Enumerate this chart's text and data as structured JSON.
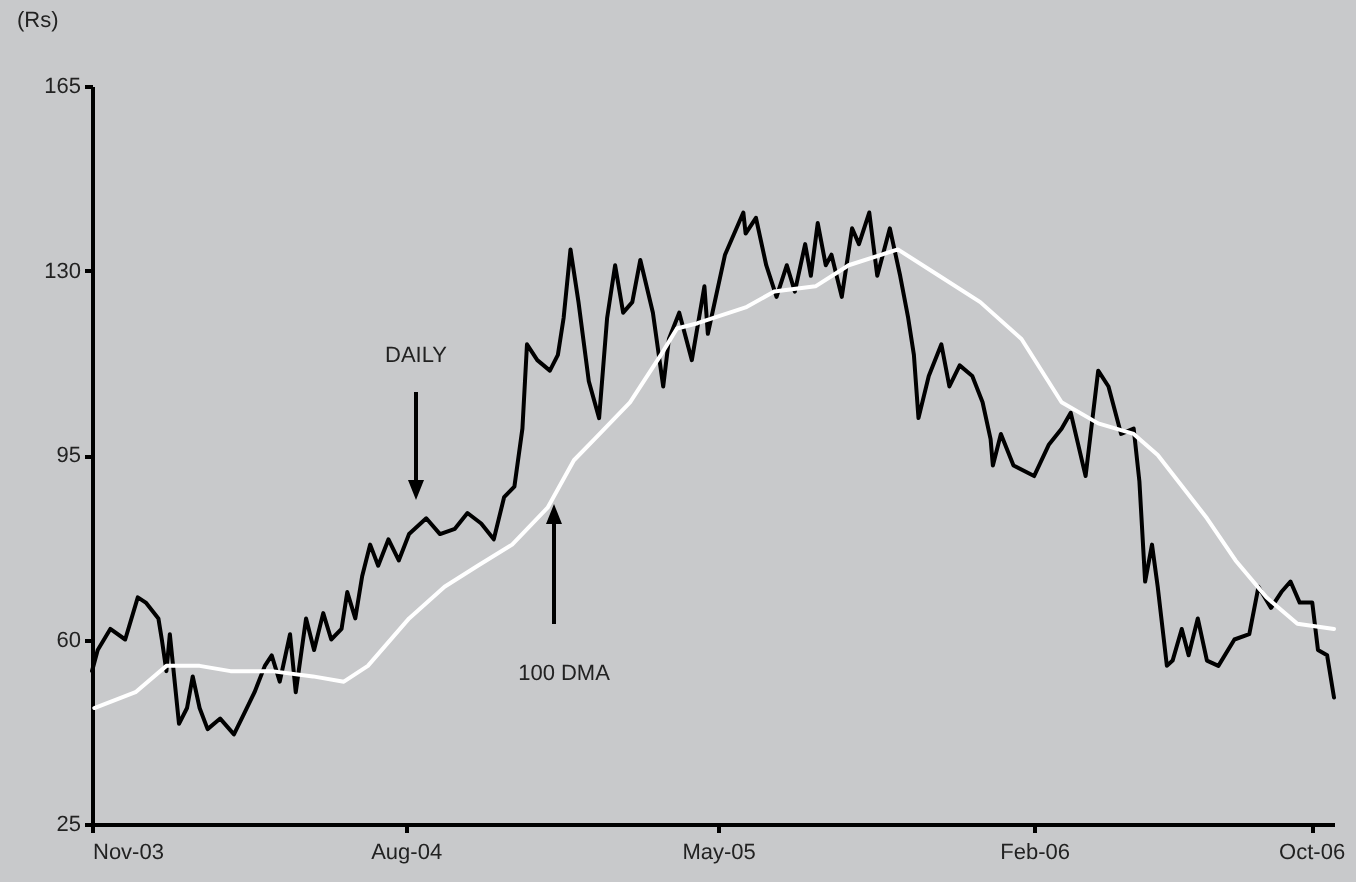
{
  "chart_data": {
    "type": "line",
    "ylabel": "(Rs)",
    "xlim": [
      "2003-11-01",
      "2006-10-21"
    ],
    "xticks": [
      {
        "value": "2003-11-01",
        "label": "Nov-03"
      },
      {
        "value": "2004-08-01",
        "label": "Aug-04"
      },
      {
        "value": "2005-05-01",
        "label": "May-05"
      },
      {
        "value": "2006-02-01",
        "label": "Feb-06"
      },
      {
        "value": "2006-10-01",
        "label": "Oct-06"
      }
    ],
    "ylim": [
      25,
      165
    ],
    "yticks": [
      25,
      60,
      95,
      130,
      165
    ],
    "series": [
      {
        "color": "#000000",
        "x": [
          "2003-11-01",
          "2003-11-06",
          "2003-11-17",
          "2003-11-30",
          "2003-12-11",
          "2003-12-18",
          "2003-12-29",
          "2004-01-01",
          "2004-01-05",
          "2004-01-08",
          "2004-01-16",
          "2004-01-23",
          "2004-01-28",
          "2004-02-03",
          "2004-02-10",
          "2004-02-21",
          "2004-03-04",
          "2004-03-13",
          "2004-03-22",
          "2004-03-31",
          "2004-04-06",
          "2004-04-13",
          "2004-04-22",
          "2004-04-27",
          "2004-05-06",
          "2004-05-13",
          "2004-05-21",
          "2004-05-28",
          "2004-06-06",
          "2004-06-11",
          "2004-06-18",
          "2004-06-24",
          "2004-07-01",
          "2004-07-08",
          "2004-07-17",
          "2004-07-26",
          "2004-08-04",
          "2004-08-19",
          "2004-08-31",
          "2004-09-13",
          "2004-09-24",
          "2004-10-06",
          "2004-10-17",
          "2004-10-26",
          "2004-11-04",
          "2004-11-11",
          "2004-11-15",
          "2004-11-24",
          "2004-12-05",
          "2004-12-12",
          "2004-12-17",
          "2004-12-23",
          "2004-12-30",
          "2005-01-08",
          "2005-01-17",
          "2005-01-24",
          "2005-01-31",
          "2005-02-07",
          "2005-02-15",
          "2005-02-22",
          "2005-03-05",
          "2005-03-14",
          "2005-03-19",
          "2005-03-28",
          "2005-04-08",
          "2005-04-19",
          "2005-04-22",
          "2005-05-07",
          "2005-05-23",
          "2005-05-25",
          "2005-06-03",
          "2005-06-12",
          "2005-06-21",
          "2005-06-30",
          "2005-07-07",
          "2005-07-16",
          "2005-07-21",
          "2005-07-27",
          "2005-08-03",
          "2005-08-08",
          "2005-08-17",
          "2005-08-26",
          "2005-09-01",
          "2005-09-10",
          "2005-09-17",
          "2005-09-28",
          "2005-10-07",
          "2005-10-14",
          "2005-10-19",
          "2005-10-23",
          "2005-11-01",
          "2005-11-12",
          "2005-11-19",
          "2005-11-28",
          "2005-12-09",
          "2005-12-18",
          "2005-12-25",
          "2005-12-27",
          "2006-01-03",
          "2006-01-14",
          "2006-02-01",
          "2006-02-14",
          "2006-02-25",
          "2006-03-05",
          "2006-03-18",
          "2006-03-29",
          "2006-04-07",
          "2006-04-18",
          "2006-04-29",
          "2006-05-04",
          "2006-05-09",
          "2006-05-15",
          "2006-05-20",
          "2006-05-28",
          "2006-06-02",
          "2006-06-10",
          "2006-06-16",
          "2006-06-24",
          "2006-07-02",
          "2006-07-12",
          "2006-07-26",
          "2006-08-08",
          "2006-08-16",
          "2006-08-27",
          "2006-09-05",
          "2006-09-13",
          "2006-09-21",
          "2006-10-02",
          "2006-10-07",
          "2006-10-15",
          "2006-10-21"
        ],
        "values": [
          54,
          58,
          62,
          60,
          68,
          67,
          64,
          60,
          54,
          61,
          44,
          47,
          53,
          47,
          43,
          45,
          42,
          46,
          50,
          55,
          57,
          52,
          61,
          50,
          64,
          58,
          65,
          60,
          62,
          69,
          64,
          72,
          78,
          74,
          79,
          75,
          80,
          83,
          80,
          81,
          84,
          82,
          79,
          87,
          89,
          100,
          116,
          113,
          111,
          114,
          121,
          134,
          124,
          109,
          102,
          121,
          131,
          122,
          124,
          132,
          122,
          108,
          117,
          122,
          113,
          127,
          118,
          133,
          141,
          137,
          140,
          131,
          125,
          131,
          126,
          135,
          129,
          139,
          131,
          133,
          125,
          138,
          135,
          141,
          129,
          138,
          129,
          121,
          114,
          102,
          110,
          116,
          108,
          112,
          110,
          105,
          98,
          93,
          99,
          93,
          91,
          97,
          100,
          103,
          91,
          111,
          108,
          99,
          100,
          90,
          71,
          78,
          70,
          55,
          56,
          62,
          57,
          64,
          56,
          55,
          60,
          61,
          70,
          66,
          69,
          71,
          67,
          67,
          58,
          57,
          49
        ]
      },
      {
        "color": "#ffffff",
        "x": [
          "2003-11-03",
          "2003-12-09",
          "2004-01-05",
          "2004-02-03",
          "2004-03-01",
          "2004-04-06",
          "2004-05-12",
          "2004-06-08",
          "2004-06-29",
          "2004-08-04",
          "2004-09-04",
          "2004-10-03",
          "2004-11-02",
          "2004-12-03",
          "2004-12-26",
          "2005-01-13",
          "2005-02-13",
          "2005-03-12",
          "2005-03-26",
          "2005-04-13",
          "2005-05-25",
          "2005-06-19",
          "2005-07-25",
          "2005-08-23",
          "2005-10-05",
          "2005-11-10",
          "2005-12-16",
          "2006-01-21",
          "2006-02-25",
          "2006-03-29",
          "2006-04-29",
          "2006-05-20",
          "2006-07-02",
          "2006-07-27",
          "2006-08-23",
          "2006-09-19",
          "2006-10-21"
        ],
        "values": [
          47,
          50,
          55,
          55,
          54,
          54,
          53,
          52,
          55,
          64,
          70,
          74,
          78,
          85,
          94,
          98,
          105,
          114,
          119,
          120,
          123,
          126,
          127,
          131,
          134,
          129,
          124,
          117,
          105,
          101,
          99,
          95,
          83,
          75,
          68,
          63,
          62
        ]
      }
    ],
    "annotations": [
      "DAILY",
      "100 DMA"
    ]
  }
}
